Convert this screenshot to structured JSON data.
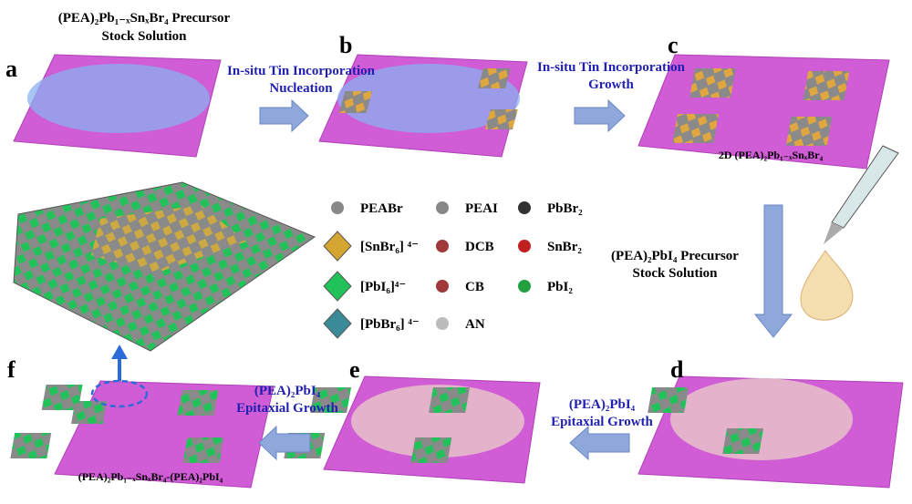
{
  "panels": {
    "a": "a",
    "b": "b",
    "c": "c",
    "d": "d",
    "e": "e",
    "f": "f"
  },
  "captions": {
    "a_line1": "(PEA)₂Pb₁₋ₓSnₓBr₄ Precursor",
    "a_line2": "Stock Solution",
    "ab_line1": "In-situ Tin Incorporation",
    "ab_line2": "Nucleation",
    "bc_line1": "In-situ Tin Incorporation",
    "bc_line2": "Growth",
    "c_label": "2D  (PEA)₂Pb₁₋ₓSnₓBr₄",
    "d_line1": "(PEA)₂PbI₄ Precursor",
    "d_line2": "Stock Solution",
    "de_line1": "(PEA)₂PbI₄",
    "de_line2": "Epitaxial Growth",
    "ef_line1": "(PEA)₂PbI₄",
    "ef_line2": "Epitaxial Growth",
    "f_label": "(PEA)₂Pb₁₋ₓSnₓBr₄-(PEA)₂PbI₄"
  },
  "legend": [
    {
      "label": "PEABr"
    },
    {
      "label": "PEAI"
    },
    {
      "label": "PbBr₂"
    },
    {
      "label": "[SnBr₆] ⁴⁻"
    },
    {
      "label": "DCB"
    },
    {
      "label": "SnBr₂"
    },
    {
      "label": "[PbI₆]⁴⁻"
    },
    {
      "label": "CB"
    },
    {
      "label": "PbI₂"
    },
    {
      "label": "[PbBr₆] ⁴⁻"
    },
    {
      "label": "AN"
    }
  ]
}
